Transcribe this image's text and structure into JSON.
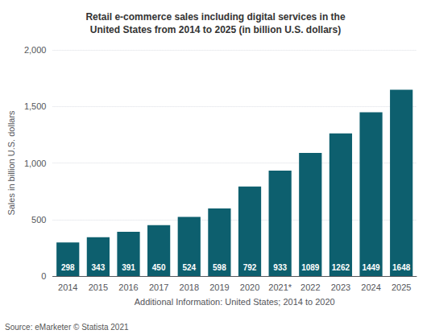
{
  "chart_data": {
    "type": "bar",
    "title": "Retail e-commerce sales including digital services in the\nUnited States from 2014 to 2025 (in billion U.S. dollars)",
    "xlabel": "Additional Information: United States; 2014 to 2020",
    "ylabel": "Sales in billion U.S. dollars",
    "annotations": [
      "Source: eMarketer © Statista 2021"
    ],
    "categories": [
      "2014",
      "2015",
      "2016",
      "2017",
      "2018",
      "2019",
      "2020",
      "2021*",
      "2022",
      "2023",
      "2024",
      "2025"
    ],
    "values": [
      298,
      343,
      391,
      450,
      524,
      598,
      792,
      933,
      1089,
      1262,
      1449,
      1648
    ],
    "color": "#0d5f6e",
    "ylim": [
      0,
      2000
    ],
    "yticks": [
      0,
      500,
      1000,
      1500,
      2000
    ],
    "grid": true,
    "data_labels": true
  }
}
